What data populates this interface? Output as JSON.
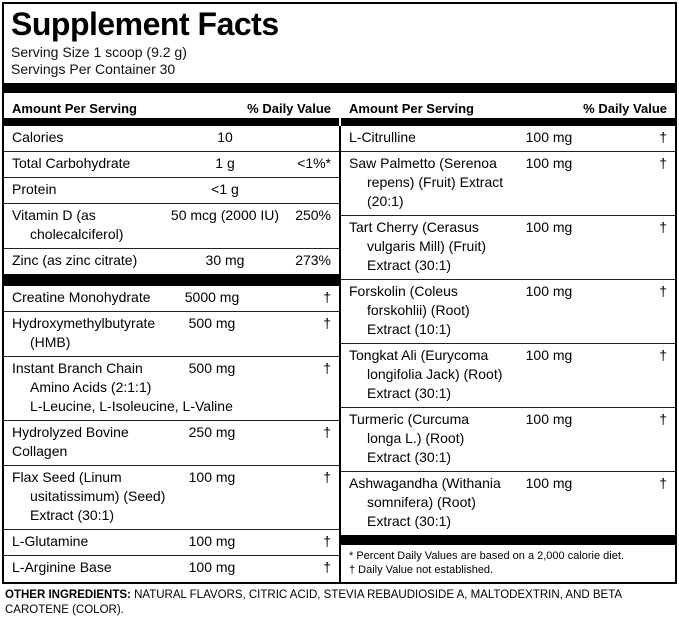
{
  "label": {
    "title": "Supplement Facts",
    "serving_size": "Serving Size 1 scoop (9.2 g)",
    "servings_per_container": "Servings Per Container 30",
    "column_header": {
      "amount": "Amount Per Serving",
      "daily_value": "% Daily Value"
    }
  },
  "left_column": {
    "nutrition_rows": [
      {
        "name_lines": [
          "Calories"
        ],
        "amount": "10",
        "dv": ""
      },
      {
        "name_lines": [
          "Total Carbohydrate"
        ],
        "amount": "1 g",
        "dv": "<1%*"
      },
      {
        "name_lines": [
          "Protein"
        ],
        "amount": "<1 g",
        "dv": ""
      },
      {
        "name_lines": [
          "Vitamin D (as",
          "cholecalciferol)"
        ],
        "amount": "50 mcg (2000 IU)",
        "dv": "250%"
      },
      {
        "name_lines": [
          "Zinc (as zinc citrate)"
        ],
        "amount": "30 mg",
        "dv": "273%"
      }
    ],
    "supplement_rows": [
      {
        "name_lines": [
          "Creatine Monohydrate"
        ],
        "amount": "5000 mg",
        "dv": "†"
      },
      {
        "name_lines": [
          "Hydroxymethylbutyrate",
          "(HMB)"
        ],
        "amount": "500 mg",
        "dv": "†"
      },
      {
        "name_lines": [
          "Instant Branch Chain",
          "Amino Acids (2:1:1)",
          "L-Leucine, L-Isoleucine, L-Valine"
        ],
        "amount": "500 mg",
        "dv": "†"
      },
      {
        "name_lines": [
          "Hydrolyzed Bovine",
          "Collagen"
        ],
        "indent": false,
        "amount": "250 mg",
        "dv": "†"
      },
      {
        "name_lines": [
          "Flax Seed (Linum",
          "usitatissimum) (Seed)",
          "Extract (30:1)"
        ],
        "amount": "100 mg",
        "dv": "†"
      },
      {
        "name_lines": [
          "L-Glutamine"
        ],
        "amount": "100 mg",
        "dv": "†"
      },
      {
        "name_lines": [
          "L-Arginine Base"
        ],
        "amount": "100 mg",
        "dv": "†"
      }
    ]
  },
  "right_column": {
    "rows": [
      {
        "name_lines": [
          "L-Citrulline"
        ],
        "amount": "100 mg",
        "dv": "†"
      },
      {
        "name_lines": [
          "Saw Palmetto (Serenoa",
          "repens) (Fruit) Extract",
          "(20:1)"
        ],
        "amount": "100 mg",
        "dv": "†"
      },
      {
        "name_lines": [
          "Tart Cherry (Cerasus",
          "vulgaris Mill) (Fruit)",
          "Extract (30:1)"
        ],
        "amount": "100 mg",
        "dv": "†"
      },
      {
        "name_lines": [
          "Forskolin (Coleus",
          "forskohlii) (Root)",
          "Extract (10:1)"
        ],
        "amount": "100 mg",
        "dv": "†"
      },
      {
        "name_lines": [
          "Tongkat Ali (Eurycoma",
          "longifolia Jack) (Root)",
          "Extract (30:1)"
        ],
        "amount": "100 mg",
        "dv": "†"
      },
      {
        "name_lines": [
          "Turmeric (Curcuma",
          "longa L.) (Root)",
          "Extract (30:1)"
        ],
        "amount": "100 mg",
        "dv": "†"
      },
      {
        "name_lines": [
          "Ashwagandha (Withania",
          "somnifera) (Root)",
          "Extract (30:1)"
        ],
        "amount": "100 mg",
        "dv": "†"
      }
    ],
    "footnotes": [
      "* Percent Daily Values are based on a 2,000 calorie diet.",
      "† Daily Value not established."
    ]
  },
  "other_ingredients": {
    "label": "OTHER INGREDIENTS:",
    "text": " NATURAL FLAVORS, CITRIC ACID, STEVIA REBAUDIOSIDE A, MALTODEXTRIN, AND BETA CAROTENE (COLOR)."
  },
  "colors": {
    "text": "#000000",
    "background": "#ffffff",
    "bars": "#000000",
    "rules": "#222222"
  }
}
